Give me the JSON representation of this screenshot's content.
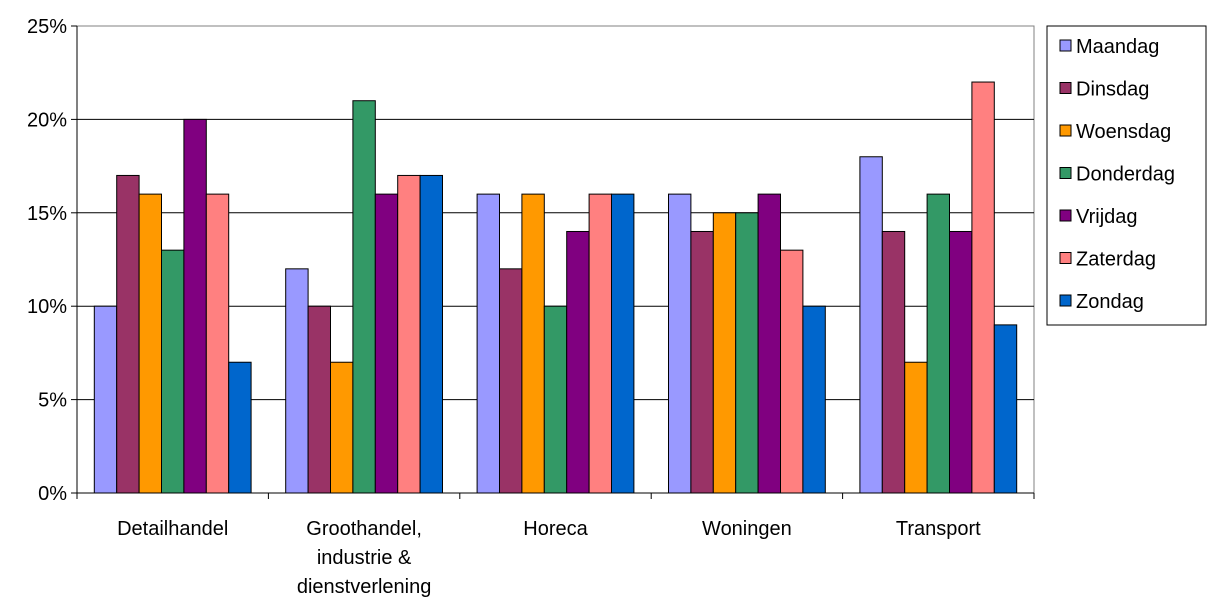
{
  "chart_data": {
    "type": "bar",
    "title": "",
    "xlabel": "",
    "ylabel": "",
    "ylim": [
      0,
      25
    ],
    "y_ticks": [
      "0%",
      "5%",
      "10%",
      "15%",
      "20%",
      "25%"
    ],
    "y_tick_values": [
      0,
      5,
      10,
      15,
      20,
      25
    ],
    "grid": true,
    "legend_position": "right",
    "categories": [
      [
        "Detailhandel"
      ],
      [
        "Groothandel,",
        "industrie &",
        "dienstverlening"
      ],
      [
        "Horeca"
      ],
      [
        "Woningen"
      ],
      [
        "Transport"
      ]
    ],
    "series": [
      {
        "name": "Maandag",
        "color": "#9999ff",
        "values": [
          10,
          12,
          16,
          16,
          18
        ]
      },
      {
        "name": "Dinsdag",
        "color": "#993366",
        "values": [
          17,
          10,
          12,
          14,
          14
        ]
      },
      {
        "name": "Woensdag",
        "color": "#ff9900",
        "values": [
          16,
          7,
          16,
          15,
          7
        ]
      },
      {
        "name": "Donderdag",
        "color": "#339966",
        "values": [
          13,
          21,
          10,
          15,
          16
        ]
      },
      {
        "name": "Vrijdag",
        "color": "#800080",
        "values": [
          20,
          16,
          14,
          16,
          14
        ]
      },
      {
        "name": "Zaterdag",
        "color": "#ff8080",
        "values": [
          16,
          17,
          16,
          13,
          22
        ]
      },
      {
        "name": "Zondag",
        "color": "#0066cc",
        "values": [
          7,
          17,
          16,
          10,
          9
        ]
      }
    ]
  }
}
